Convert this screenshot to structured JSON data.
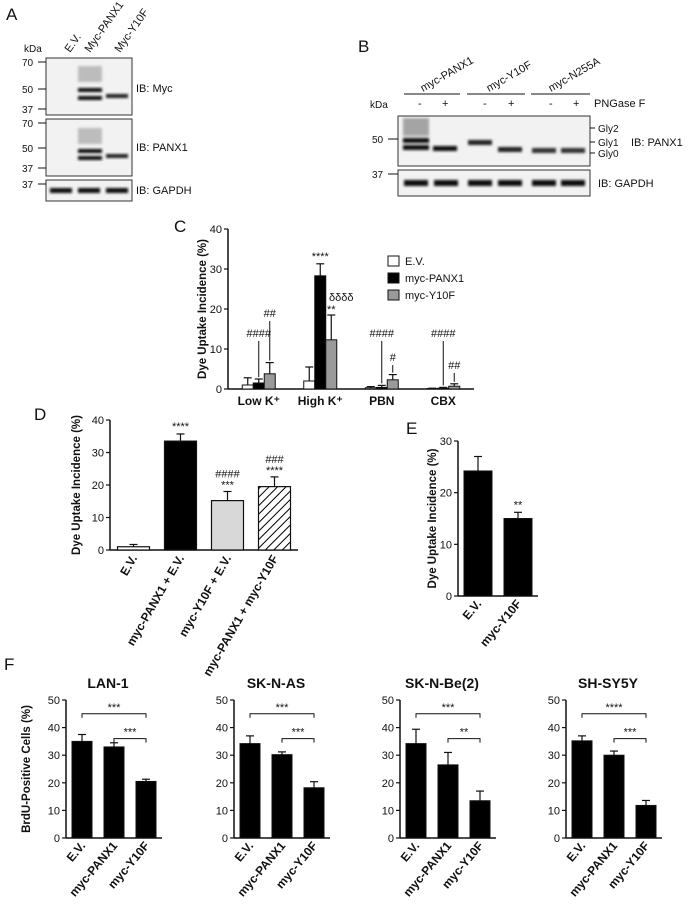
{
  "panels": {
    "A": {
      "label": "A",
      "kda": "kDa",
      "lanes": [
        "E.V.",
        "Myc-PANX1",
        "Myc-Y10F"
      ],
      "blots": [
        {
          "label": "IB: Myc",
          "markers": [
            "70",
            "50",
            "37"
          ]
        },
        {
          "label": "IB: PANX1",
          "markers": [
            "70",
            "50",
            "37"
          ]
        },
        {
          "label": "IB: GAPDH",
          "markers": [
            "37"
          ]
        }
      ]
    },
    "B": {
      "label": "B",
      "kda": "kDa",
      "groups": [
        "myc-PANX1",
        "myc-Y10F",
        "myc-N255A"
      ],
      "pngase_label": "PNGase F",
      "pngase_signs": [
        "-",
        "+",
        "-",
        "+",
        "-",
        "+"
      ],
      "band_labels": [
        "Gly2",
        "Gly1",
        "Gly0"
      ],
      "blots": [
        {
          "label": "IB: PANX1",
          "markers": [
            "50"
          ]
        },
        {
          "label": "IB: GAPDH",
          "markers": [
            "37"
          ]
        }
      ]
    },
    "C_label": "C",
    "D_label": "D",
    "E_label": "E",
    "F_label": "F"
  },
  "chart_data": [
    {
      "id": "C",
      "type": "bar",
      "ylabel": "Dye Uptake Incidence (%)",
      "ylim": [
        0,
        40
      ],
      "yticks": [
        "0",
        "10",
        "20",
        "30",
        "40"
      ],
      "categories": [
        "Low K⁺",
        "High K⁺",
        "PBN",
        "CBX"
      ],
      "legend_position": "top-right",
      "series": [
        {
          "name": "E.V.",
          "color": "#ffffff",
          "values": [
            1.0,
            2.0,
            0.3,
            0.1
          ],
          "errors": [
            1.8,
            3.5,
            0.3,
            0.1
          ]
        },
        {
          "name": "myc-PANX1",
          "color": "#000000",
          "values": [
            1.5,
            28.3,
            0.4,
            0.2
          ],
          "errors": [
            1.0,
            3.0,
            0.5,
            0.2
          ]
        },
        {
          "name": "myc-Y10F",
          "color": "#9a9a9a",
          "values": [
            3.8,
            12.3,
            2.3,
            0.7
          ],
          "errors": [
            2.8,
            6.2,
            1.3,
            0.6
          ]
        }
      ],
      "annotations": [
        "####",
        "##",
        "****",
        "δδδδ",
        "**",
        "####",
        "#",
        "####",
        "##"
      ]
    },
    {
      "id": "D",
      "type": "bar",
      "ylabel": "Dye  Uptake Incidence (%)",
      "ylim": [
        0,
        40
      ],
      "yticks": [
        "0",
        "10",
        "20",
        "30",
        "40"
      ],
      "categories": [
        "E.V.",
        "myc-PANX1 + E.V.",
        "myc-Y10F + E.V.",
        "myc-PANX1 + myc-Y10F"
      ],
      "values": [
        1.0,
        33.5,
        15.2,
        19.5
      ],
      "errors": [
        0.7,
        2.2,
        2.8,
        3.0
      ],
      "fills": [
        "#ffffff",
        "#000000",
        "#d8d8d8",
        "hatch"
      ],
      "annotations": [
        "****",
        "####",
        "***",
        "###",
        "****"
      ]
    },
    {
      "id": "E",
      "type": "bar",
      "ylabel": "Dye Uptake Incidence (%)",
      "ylim": [
        0,
        30
      ],
      "yticks": [
        "0",
        "10",
        "20",
        "30"
      ],
      "categories": [
        "E.V.",
        "myc-Y10F"
      ],
      "values": [
        24.2,
        15.0
      ],
      "errors": [
        2.8,
        1.2
      ],
      "annotations": [
        "**"
      ]
    },
    {
      "id": "F1",
      "type": "bar",
      "title": "LAN-1",
      "ylabel": "BrdU-Positive Cells (%)",
      "ylim": [
        0,
        50
      ],
      "yticks": [
        "0",
        "10",
        "20",
        "30",
        "40",
        "50"
      ],
      "categories": [
        "E.V.",
        "myc-PANX1",
        "myc-Y10F"
      ],
      "values": [
        35.0,
        33.0,
        20.5
      ],
      "errors": [
        2.5,
        1.5,
        0.8
      ],
      "brackets": [
        {
          "from": 0,
          "to": 2,
          "label": "***"
        },
        {
          "from": 1,
          "to": 2,
          "label": "***"
        }
      ]
    },
    {
      "id": "F2",
      "type": "bar",
      "title": "SK-N-AS",
      "ylim": [
        0,
        50
      ],
      "yticks": [
        "0",
        "10",
        "20",
        "30",
        "40",
        "50"
      ],
      "categories": [
        "E.V.",
        "myc-PANX1",
        "myc-Y10F"
      ],
      "values": [
        34.2,
        30.2,
        18.2
      ],
      "errors": [
        2.8,
        1.0,
        2.2
      ],
      "brackets": [
        {
          "from": 0,
          "to": 2,
          "label": "***"
        },
        {
          "from": 1,
          "to": 2,
          "label": "***"
        }
      ]
    },
    {
      "id": "F3",
      "type": "bar",
      "title": "SK-N-Be(2)",
      "ylim": [
        0,
        50
      ],
      "yticks": [
        "0",
        "10",
        "20",
        "30",
        "40",
        "50"
      ],
      "categories": [
        "E.V.",
        "myc-PANX1",
        "myc-Y10F"
      ],
      "values": [
        34.2,
        26.5,
        13.5
      ],
      "errors": [
        5.2,
        4.5,
        3.5
      ],
      "brackets": [
        {
          "from": 0,
          "to": 2,
          "label": "***"
        },
        {
          "from": 1,
          "to": 2,
          "label": "**"
        }
      ]
    },
    {
      "id": "F4",
      "type": "bar",
      "title": "SH-SY5Y",
      "ylim": [
        0,
        50
      ],
      "yticks": [
        "0",
        "10",
        "20",
        "30",
        "40",
        "50"
      ],
      "categories": [
        "E.V.",
        "myc-PANX1",
        "myc-Y10F"
      ],
      "values": [
        35.2,
        30.0,
        11.8
      ],
      "errors": [
        1.8,
        1.5,
        1.8
      ],
      "brackets": [
        {
          "from": 0,
          "to": 2,
          "label": "****"
        },
        {
          "from": 1,
          "to": 2,
          "label": "***"
        }
      ]
    }
  ]
}
